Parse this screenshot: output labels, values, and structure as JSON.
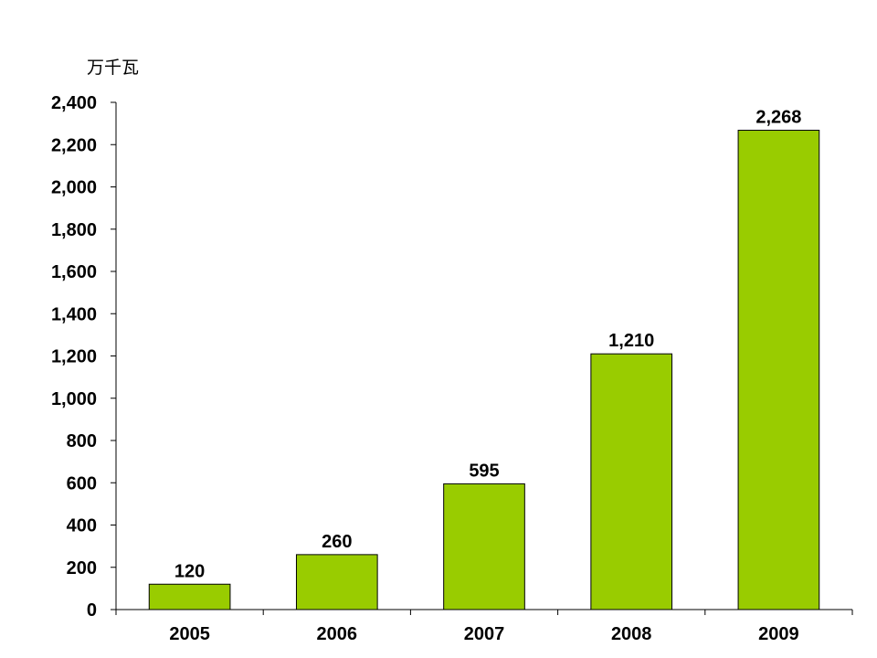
{
  "chart_data": {
    "type": "bar",
    "unit_label": "万千瓦",
    "categories": [
      "2005",
      "2006",
      "2007",
      "2008",
      "2009"
    ],
    "values": [
      120,
      260,
      595,
      1210,
      2268
    ],
    "data_labels": [
      "120",
      "260",
      "595",
      "1,210",
      "2,268"
    ],
    "ylim": [
      0,
      2400
    ],
    "yticks": [
      0,
      200,
      400,
      600,
      800,
      1000,
      1200,
      1400,
      1600,
      1800,
      2000,
      2200,
      2400
    ],
    "ytick_labels": [
      "0",
      "200",
      "400",
      "600",
      "800",
      "1,000",
      "1,200",
      "1,400",
      "1,600",
      "1,800",
      "2,000",
      "2,200",
      "2,400"
    ],
    "grid": false,
    "legend": "none",
    "colors": {
      "bar": "#99cc00",
      "axis": "#000000",
      "text": "#000000"
    }
  }
}
